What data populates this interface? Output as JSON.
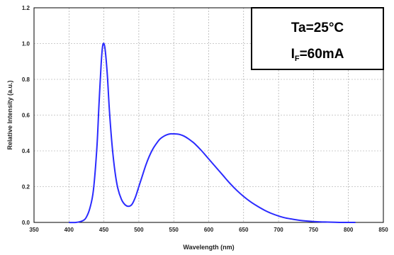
{
  "chart_data": {
    "type": "line",
    "xlabel": "Wavelength (nm)",
    "ylabel": "Relative Intensity (a.u.)",
    "xlim": [
      350,
      850
    ],
    "ylim": [
      0,
      1.2
    ],
    "x_ticks": [
      "350",
      "400",
      "450",
      "500",
      "550",
      "600",
      "650",
      "700",
      "750",
      "800",
      "850"
    ],
    "y_ticks": [
      "0.0",
      "0.2",
      "0.4",
      "0.6",
      "0.8",
      "1.0",
      "1.2"
    ],
    "grid": true,
    "line_color": "#2b2bff",
    "annotation": {
      "line1": "Ta=25°C",
      "line2_main": "I",
      "line2_sub": "F",
      "line2_rest": "=60mA"
    },
    "series": [
      {
        "x": [
          400,
          410,
          420,
          425,
          430,
          435,
          440,
          443,
          446,
          448,
          450,
          452,
          455,
          458,
          462,
          466,
          470,
          475,
          480,
          485,
          490,
          495,
          500,
          505,
          510,
          515,
          520,
          525,
          530,
          535,
          540,
          545,
          550,
          555,
          560,
          565,
          570,
          575,
          580,
          590,
          600,
          610,
          620,
          630,
          640,
          650,
          660,
          670,
          680,
          690,
          700,
          710,
          720,
          730,
          740,
          750,
          760,
          770,
          780,
          790,
          800,
          810
        ],
        "y": [
          0.0,
          0.0,
          0.01,
          0.03,
          0.08,
          0.18,
          0.42,
          0.66,
          0.88,
          0.98,
          1.0,
          0.96,
          0.82,
          0.62,
          0.42,
          0.28,
          0.19,
          0.13,
          0.1,
          0.09,
          0.1,
          0.14,
          0.2,
          0.26,
          0.32,
          0.37,
          0.41,
          0.44,
          0.465,
          0.48,
          0.49,
          0.495,
          0.495,
          0.494,
          0.49,
          0.482,
          0.47,
          0.456,
          0.44,
          0.4,
          0.355,
          0.31,
          0.265,
          0.22,
          0.18,
          0.145,
          0.115,
          0.09,
          0.068,
          0.05,
          0.036,
          0.025,
          0.018,
          0.012,
          0.008,
          0.005,
          0.003,
          0.002,
          0.001,
          0.0,
          0.0,
          0.0
        ]
      }
    ]
  }
}
